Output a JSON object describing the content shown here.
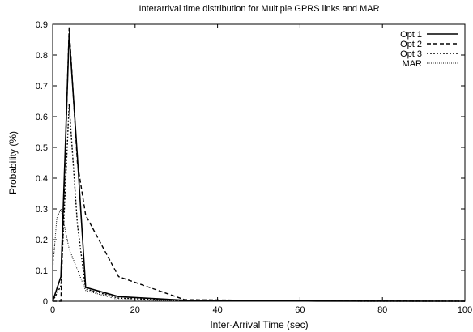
{
  "chart_data": {
    "type": "line",
    "title": "Interarrival time distribution for Multiple GPRS links and MAR",
    "xlabel": "Inter-Arrival Time (sec)",
    "ylabel": "Probability (%)",
    "xlim": [
      0,
      100
    ],
    "ylim": [
      0,
      0.9
    ],
    "x_ticks": [
      0,
      20,
      40,
      60,
      80,
      100
    ],
    "y_ticks": [
      0,
      0.1,
      0.2,
      0.3,
      0.4,
      0.5,
      0.6,
      0.7,
      0.8,
      0.9
    ],
    "x_tick_labels": [
      "0",
      "20",
      "40",
      "60",
      "80",
      "100"
    ],
    "y_tick_labels": [
      "0",
      "0.1",
      "0.2",
      "0.3",
      "0.4",
      "0.5",
      "0.6",
      "0.7",
      "0.8",
      "0.9"
    ],
    "grid": false,
    "legend_position": "top-right",
    "series": [
      {
        "name": "Opt 1",
        "style": "solid",
        "x": [
          0,
          2,
          4,
          6,
          8,
          16,
          32,
          64,
          100
        ],
        "y": [
          0,
          0.08,
          0.87,
          0.47,
          0.045,
          0.015,
          0.003,
          0.0005,
          0
        ]
      },
      {
        "name": "Opt 2",
        "style": "dashed",
        "x": [
          0,
          2,
          4,
          6,
          8,
          16,
          32,
          64,
          100
        ],
        "y": [
          0,
          0.0,
          0.89,
          0.45,
          0.28,
          0.08,
          0.005,
          0.001,
          0
        ]
      },
      {
        "name": "Opt 3",
        "style": "dotted",
        "x": [
          0,
          2,
          4,
          6,
          8,
          16,
          32,
          64,
          100
        ],
        "y": [
          0,
          0.05,
          0.64,
          0.25,
          0.04,
          0.01,
          0.002,
          0.0005,
          0
        ]
      },
      {
        "name": "MAR",
        "style": "fine-dotted",
        "x": [
          0,
          1,
          2,
          4,
          8,
          16,
          32,
          64,
          100
        ],
        "y": [
          0.1,
          0.27,
          0.3,
          0.17,
          0.035,
          0.005,
          0.001,
          0.0002,
          0
        ]
      }
    ]
  }
}
